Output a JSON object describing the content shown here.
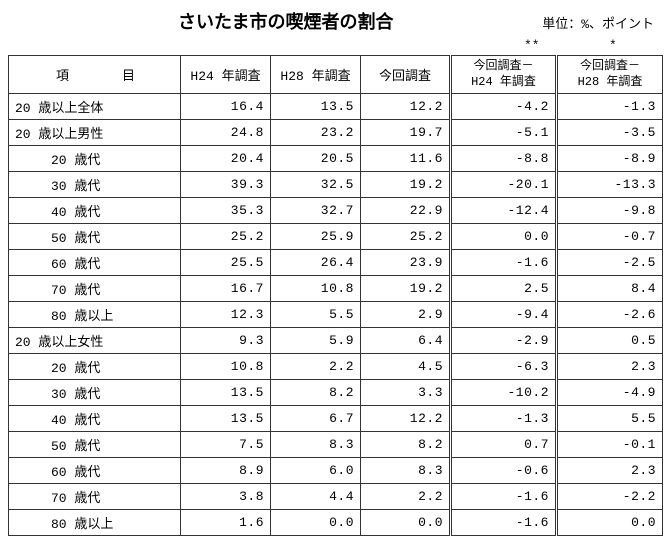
{
  "header": {
    "title": "さいたま市の喫煙者の割合",
    "unit": "単位：%、ポイント",
    "asterisk1": "**",
    "asterisk2": "*"
  },
  "columns": {
    "item": "項　目",
    "h24": "H24 年調査",
    "h28": "H28 年調査",
    "now": "今回調査",
    "diff1_l1": "今回調査－",
    "diff1_l2": "H24 年調査",
    "diff2_l1": "今回調査－",
    "diff2_l2": "H28 年調査"
  },
  "rows": [
    {
      "label": "20 歳以上全体",
      "indent": false,
      "h24": "16.4",
      "h28": "13.5",
      "now": "12.2",
      "d1": "-4.2",
      "d2": "-1.3"
    },
    {
      "label": "20 歳以上男性",
      "indent": false,
      "h24": "24.8",
      "h28": "23.2",
      "now": "19.7",
      "d1": "-5.1",
      "d2": "-3.5"
    },
    {
      "label": "20 歳代",
      "indent": true,
      "h24": "20.4",
      "h28": "20.5",
      "now": "11.6",
      "d1": "-8.8",
      "d2": "-8.9"
    },
    {
      "label": "30 歳代",
      "indent": true,
      "h24": "39.3",
      "h28": "32.5",
      "now": "19.2",
      "d1": "-20.1",
      "d2": "-13.3"
    },
    {
      "label": "40 歳代",
      "indent": true,
      "h24": "35.3",
      "h28": "32.7",
      "now": "22.9",
      "d1": "-12.4",
      "d2": "-9.8"
    },
    {
      "label": "50 歳代",
      "indent": true,
      "h24": "25.2",
      "h28": "25.9",
      "now": "25.2",
      "d1": "0.0",
      "d2": "-0.7"
    },
    {
      "label": "60 歳代",
      "indent": true,
      "h24": "25.5",
      "h28": "26.4",
      "now": "23.9",
      "d1": "-1.6",
      "d2": "-2.5"
    },
    {
      "label": "70 歳代",
      "indent": true,
      "h24": "16.7",
      "h28": "10.8",
      "now": "19.2",
      "d1": "2.5",
      "d2": "8.4"
    },
    {
      "label": "80 歳以上",
      "indent": true,
      "h24": "12.3",
      "h28": "5.5",
      "now": "2.9",
      "d1": "-9.4",
      "d2": "-2.6"
    },
    {
      "label": "20 歳以上女性",
      "indent": false,
      "h24": "9.3",
      "h28": "5.9",
      "now": "6.4",
      "d1": "-2.9",
      "d2": "0.5"
    },
    {
      "label": "20 歳代",
      "indent": true,
      "h24": "10.8",
      "h28": "2.2",
      "now": "4.5",
      "d1": "-6.3",
      "d2": "2.3"
    },
    {
      "label": "30 歳代",
      "indent": true,
      "h24": "13.5",
      "h28": "8.2",
      "now": "3.3",
      "d1": "-10.2",
      "d2": "-4.9"
    },
    {
      "label": "40 歳代",
      "indent": true,
      "h24": "13.5",
      "h28": "6.7",
      "now": "12.2",
      "d1": "-1.3",
      "d2": "5.5"
    },
    {
      "label": "50 歳代",
      "indent": true,
      "h24": "7.5",
      "h28": "8.3",
      "now": "8.2",
      "d1": "0.7",
      "d2": "-0.1"
    },
    {
      "label": "60 歳代",
      "indent": true,
      "h24": "8.9",
      "h28": "6.0",
      "now": "8.3",
      "d1": "-0.6",
      "d2": "2.3"
    },
    {
      "label": "70 歳代",
      "indent": true,
      "h24": "3.8",
      "h28": "4.4",
      "now": "2.2",
      "d1": "-1.6",
      "d2": "-2.2"
    },
    {
      "label": "80 歳以上",
      "indent": true,
      "h24": "1.6",
      "h28": "0.0",
      "now": "0.0",
      "d1": "-1.6",
      "d2": "0.0"
    }
  ],
  "style": {
    "background": "#ffffff",
    "border_color": "#333333",
    "title_fontsize": 18,
    "body_fontsize": 13
  }
}
